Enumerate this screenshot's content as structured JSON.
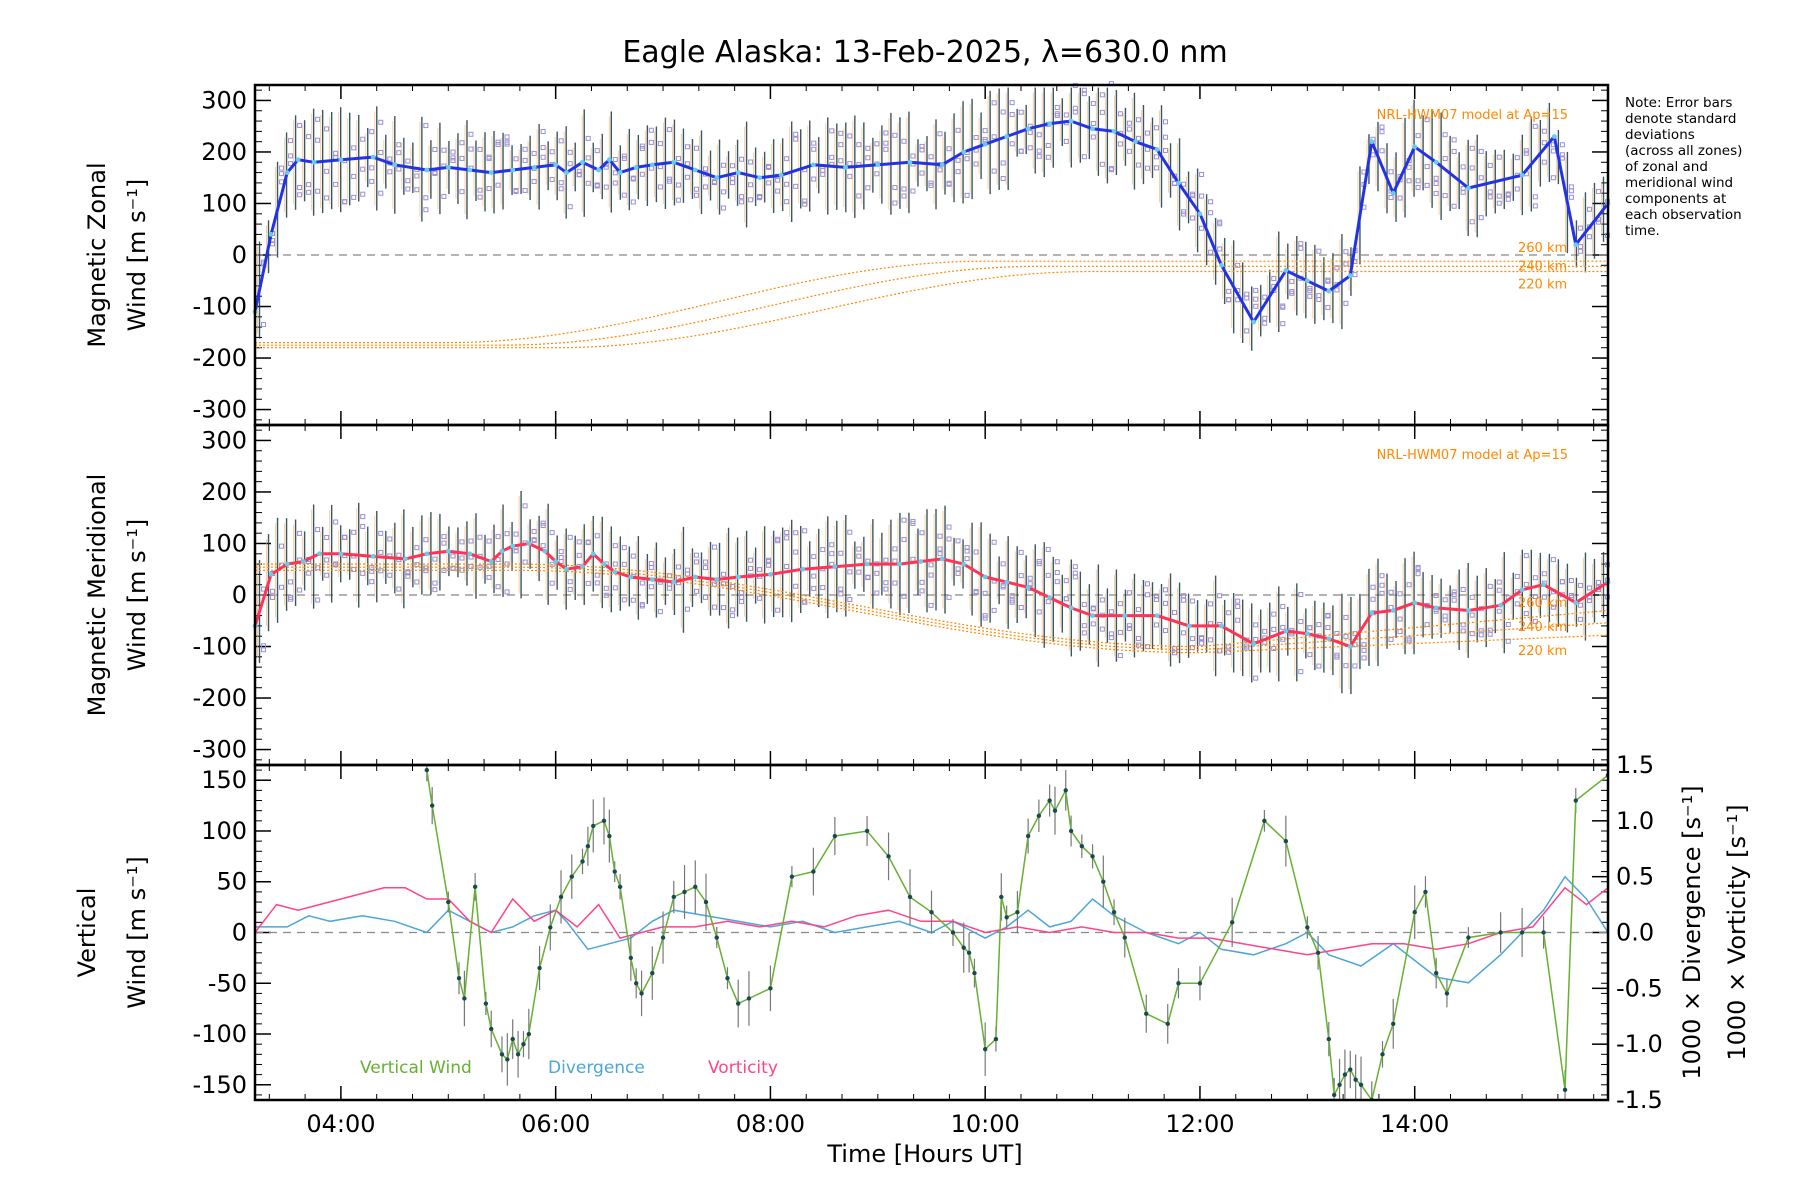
{
  "chart_data": {
    "type": "line",
    "title": "Eagle Alaska: 13-Feb-2025, λ=630.0 nm",
    "xlabel": "Time [Hours UT]",
    "x_range_hours": [
      3.2,
      15.8
    ],
    "x_ticks": [
      {
        "hours": 4,
        "label": "04:00"
      },
      {
        "hours": 6,
        "label": "06:00"
      },
      {
        "hours": 8,
        "label": "08:00"
      },
      {
        "hours": 10,
        "label": "10:00"
      },
      {
        "hours": 12,
        "label": "12:00"
      },
      {
        "hours": 14,
        "label": "14:00"
      }
    ],
    "note_lines": [
      "Note: Error bars",
      "denote standard",
      "deviations",
      "(across all zones)",
      "of zonal and",
      "meridional wind",
      "components at",
      "each observation",
      "time."
    ],
    "colors": {
      "zonal": "#2233e6",
      "meridional": "#ff3355",
      "vertical": "#66b032",
      "divergence": "#4da6d9",
      "vorticity": "#ff4488",
      "model": "#ff8800",
      "samples": "#9b8fd6",
      "error": "#1a3a40"
    },
    "panels": [
      {
        "id": "zonal",
        "ylabel": [
          "Magnetic Zonal",
          "Wind [m s⁻¹]"
        ],
        "ylim": [
          -330,
          330
        ],
        "y_ticks": [
          300,
          200,
          100,
          0,
          -100,
          -200,
          -300
        ],
        "model_label": "NRL-HWM07 model at Ap=15",
        "model_altitudes": [
          "260 km",
          "240 km",
          "220 km"
        ],
        "series": [
          {
            "name": "Mean zonal wind",
            "x": [
              3.2,
              3.35,
              3.5,
              3.6,
              3.75,
              4.0,
              4.3,
              4.5,
              4.8,
              5.0,
              5.2,
              5.4,
              5.6,
              5.8,
              6.0,
              6.1,
              6.25,
              6.4,
              6.5,
              6.6,
              6.75,
              6.9,
              7.1,
              7.3,
              7.5,
              7.7,
              7.9,
              8.1,
              8.4,
              8.7,
              9.0,
              9.3,
              9.6,
              9.8,
              10.0,
              10.2,
              10.4,
              10.6,
              10.8,
              11.0,
              11.2,
              11.4,
              11.6,
              11.8,
              12.0,
              12.2,
              12.5,
              12.8,
              13.0,
              13.2,
              13.4,
              13.6,
              13.8,
              14.0,
              14.2,
              14.5,
              15.0,
              15.3,
              15.5,
              15.8
            ],
            "y": [
              -110,
              40,
              160,
              185,
              180,
              185,
              190,
              175,
              165,
              170,
              165,
              160,
              165,
              170,
              175,
              160,
              180,
              165,
              185,
              160,
              170,
              175,
              180,
              165,
              150,
              160,
              150,
              155,
              175,
              170,
              175,
              180,
              175,
              200,
              215,
              230,
              245,
              255,
              260,
              245,
              240,
              220,
              205,
              140,
              80,
              -20,
              -130,
              -30,
              -50,
              -70,
              -40,
              220,
              120,
              210,
              180,
              130,
              155,
              230,
              20,
              100
            ]
          }
        ]
      },
      {
        "id": "meridional",
        "ylabel": [
          "Magnetic Meridional",
          "Wind [m s⁻¹]"
        ],
        "ylim": [
          -330,
          330
        ],
        "y_ticks": [
          300,
          200,
          100,
          0,
          -100,
          -200,
          -300
        ],
        "model_label": "NRL-HWM07 model at Ap=15",
        "model_altitudes": [
          "260 km",
          "240 km",
          "220 km"
        ],
        "series": [
          {
            "name": "Mean meridional wind",
            "x": [
              3.2,
              3.35,
              3.5,
              3.65,
              3.8,
              4.0,
              4.3,
              4.6,
              4.8,
              5.0,
              5.2,
              5.4,
              5.5,
              5.6,
              5.75,
              5.9,
              6.0,
              6.1,
              6.25,
              6.35,
              6.45,
              6.55,
              6.7,
              6.9,
              7.1,
              7.3,
              7.5,
              7.7,
              8.0,
              8.3,
              8.6,
              8.9,
              9.2,
              9.4,
              9.6,
              9.8,
              10.0,
              10.2,
              10.4,
              10.6,
              10.8,
              11.0,
              11.3,
              11.6,
              11.9,
              12.2,
              12.5,
              12.8,
              13.0,
              13.2,
              13.4,
              13.6,
              13.8,
              14.0,
              14.2,
              14.5,
              14.8,
              15.0,
              15.2,
              15.5,
              15.8
            ],
            "y": [
              -60,
              40,
              60,
              65,
              80,
              80,
              75,
              70,
              80,
              85,
              80,
              65,
              85,
              95,
              100,
              85,
              65,
              50,
              55,
              80,
              60,
              45,
              35,
              30,
              25,
              35,
              30,
              35,
              40,
              50,
              55,
              60,
              60,
              65,
              70,
              60,
              35,
              25,
              15,
              -5,
              -25,
              -40,
              -40,
              -40,
              -60,
              -60,
              -95,
              -70,
              -75,
              -85,
              -100,
              -35,
              -30,
              -15,
              -25,
              -30,
              -20,
              10,
              20,
              -15,
              25
            ]
          }
        ]
      },
      {
        "id": "vertical",
        "ylabel_left": [
          "Vertical",
          "Wind [m s⁻¹]"
        ],
        "ylabel_right1": "1000 × Divergence [s⁻¹]",
        "ylabel_right2": "1000 × Vorticity [s⁻¹]",
        "ylim": [
          -165,
          165
        ],
        "y_ticks": [
          150,
          100,
          50,
          0,
          -50,
          -100,
          -150
        ],
        "ylim_right": [
          -1.5,
          1.5
        ],
        "y_ticks_right": [
          1.5,
          1.0,
          0.5,
          0.0,
          -0.5,
          -1.0,
          -1.5
        ],
        "legend": [
          "Vertical Wind",
          "Divergence",
          "Vorticity"
        ],
        "series": [
          {
            "name": "Vertical Wind",
            "axis": "left",
            "x": [
              4.8,
              4.85,
              5.0,
              5.1,
              5.15,
              5.25,
              5.35,
              5.4,
              5.5,
              5.55,
              5.6,
              5.65,
              5.7,
              5.75,
              5.85,
              5.95,
              6.05,
              6.15,
              6.25,
              6.3,
              6.35,
              6.45,
              6.5,
              6.55,
              6.6,
              6.7,
              6.75,
              6.8,
              6.9,
              7.0,
              7.1,
              7.2,
              7.3,
              7.4,
              7.5,
              7.6,
              7.7,
              7.8,
              8.0,
              8.2,
              8.4,
              8.6,
              8.9,
              9.1,
              9.3,
              9.5,
              9.7,
              9.8,
              9.85,
              9.9,
              10.0,
              10.1,
              10.15,
              10.2,
              10.3,
              10.4,
              10.5,
              10.6,
              10.65,
              10.75,
              10.8,
              10.9,
              11.0,
              11.1,
              11.2,
              11.3,
              11.5,
              11.7,
              11.8,
              12.0,
              12.3,
              12.6,
              12.8,
              13.0,
              13.1,
              13.2,
              13.25,
              13.3,
              13.35,
              13.4,
              13.45,
              13.5,
              13.6,
              13.7,
              13.8,
              14.0,
              14.1,
              14.2,
              14.3,
              14.5,
              14.8,
              15.0,
              15.2,
              15.4,
              15.5,
              15.8
            ],
            "y": [
              160,
              125,
              30,
              -45,
              -65,
              45,
              -70,
              -95,
              -120,
              -125,
              -105,
              -120,
              -110,
              -100,
              -35,
              5,
              35,
              55,
              70,
              85,
              105,
              110,
              95,
              60,
              45,
              -25,
              -50,
              -60,
              -40,
              -5,
              35,
              40,
              45,
              30,
              -5,
              -45,
              -70,
              -65,
              -55,
              55,
              60,
              95,
              100,
              75,
              35,
              20,
              0,
              -15,
              -20,
              -40,
              -115,
              -105,
              35,
              15,
              20,
              95,
              115,
              130,
              120,
              140,
              100,
              85,
              75,
              50,
              20,
              -5,
              -80,
              -90,
              -50,
              -50,
              10,
              110,
              90,
              5,
              -20,
              -105,
              -160,
              -150,
              -140,
              -135,
              -145,
              -150,
              -165,
              -120,
              -90,
              20,
              40,
              -40,
              -60,
              -5,
              0,
              0,
              0,
              -155,
              130,
              155
            ]
          },
          {
            "name": "Divergence",
            "axis": "right",
            "x": [
              3.2,
              3.5,
              3.7,
              3.9,
              4.2,
              4.5,
              4.8,
              5.0,
              5.2,
              5.4,
              5.6,
              5.8,
              6.0,
              6.1,
              6.3,
              6.5,
              6.7,
              6.9,
              7.1,
              7.4,
              7.7,
              8.0,
              8.3,
              8.6,
              8.9,
              9.2,
              9.5,
              9.7,
              9.9,
              10.0,
              10.2,
              10.4,
              10.6,
              10.8,
              11.0,
              11.2,
              11.5,
              11.8,
              12.0,
              12.2,
              12.5,
              12.8,
              13.0,
              13.2,
              13.5,
              13.8,
              14.0,
              14.2,
              14.5,
              14.8,
              15.0,
              15.2,
              15.4,
              15.6,
              15.8
            ],
            "y": [
              0.05,
              0.05,
              0.15,
              0.1,
              0.15,
              0.1,
              0.0,
              0.2,
              0.1,
              0.0,
              0.05,
              0.15,
              0.2,
              0.1,
              -0.15,
              -0.1,
              -0.05,
              0.1,
              0.2,
              0.15,
              0.1,
              0.05,
              0.1,
              0.0,
              0.05,
              0.1,
              0.0,
              0.1,
              0.0,
              -0.05,
              0.05,
              0.2,
              0.05,
              0.1,
              0.3,
              0.15,
              0.0,
              -0.1,
              0.0,
              -0.15,
              -0.2,
              -0.1,
              0.0,
              -0.2,
              -0.3,
              -0.1,
              -0.25,
              -0.4,
              -0.45,
              -0.2,
              0.0,
              0.2,
              0.5,
              0.3,
              0.0
            ]
          },
          {
            "name": "Vorticity",
            "axis": "right",
            "x": [
              3.2,
              3.4,
              3.6,
              3.8,
              4.0,
              4.2,
              4.4,
              4.6,
              4.8,
              5.0,
              5.2,
              5.4,
              5.6,
              5.8,
              6.0,
              6.2,
              6.4,
              6.6,
              6.8,
              7.0,
              7.3,
              7.6,
              7.9,
              8.2,
              8.5,
              8.8,
              9.1,
              9.4,
              9.7,
              10.0,
              10.3,
              10.6,
              10.9,
              11.2,
              11.5,
              11.8,
              12.1,
              12.4,
              12.7,
              13.0,
              13.3,
              13.6,
              13.9,
              14.2,
              14.5,
              14.8,
              15.1,
              15.4,
              15.6,
              15.8
            ],
            "y": [
              0.0,
              0.25,
              0.2,
              0.25,
              0.3,
              0.35,
              0.4,
              0.4,
              0.3,
              0.3,
              0.1,
              0.0,
              0.3,
              0.1,
              0.2,
              0.05,
              0.25,
              -0.05,
              0.0,
              0.05,
              0.05,
              0.1,
              0.05,
              0.1,
              0.05,
              0.15,
              0.2,
              0.1,
              0.1,
              0.0,
              0.05,
              0.0,
              0.05,
              0.0,
              0.0,
              -0.05,
              -0.05,
              -0.1,
              -0.15,
              -0.2,
              -0.15,
              -0.1,
              -0.1,
              -0.15,
              -0.1,
              0.0,
              0.05,
              0.4,
              0.25,
              0.4
            ]
          }
        ]
      }
    ]
  }
}
